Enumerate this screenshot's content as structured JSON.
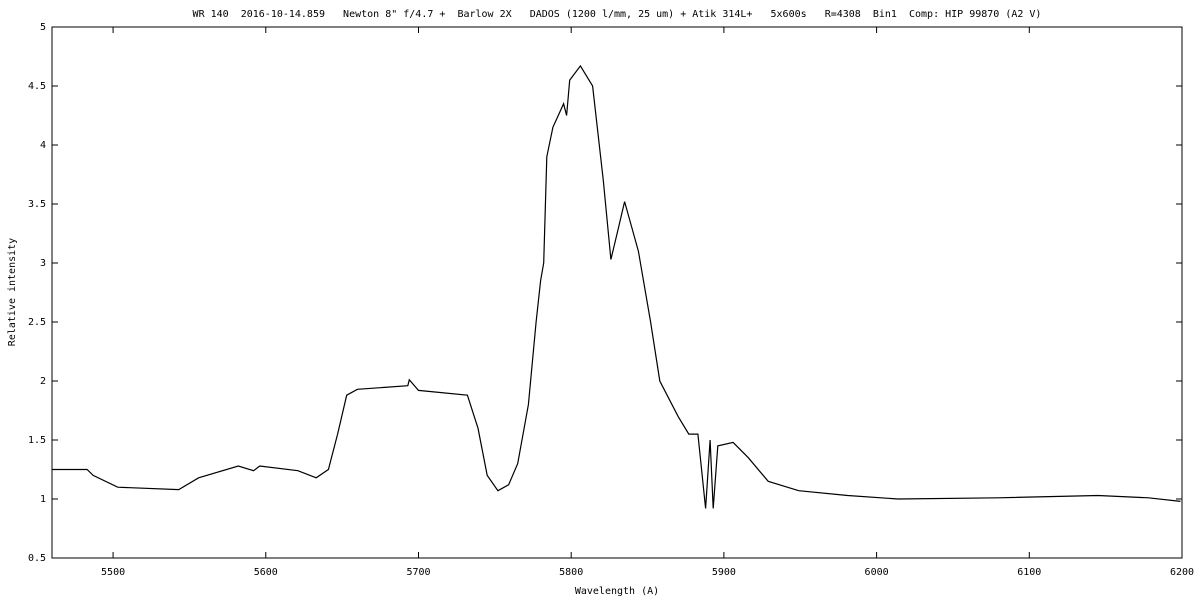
{
  "chart_data": {
    "type": "line",
    "title": "WR 140  2016-10-14.859   Newton 8\" f/4.7 +  Barlow 2X   DADOS (1200 l/mm, 25 um) + Atik 314L+   5x600s   R=4308  Bin1  Comp: HIP 99870 (A2 V)",
    "x_label": "Wavelength (A)",
    "y_label": "Relative intensity",
    "xlim": [
      5460,
      6200
    ],
    "ylim": [
      0.5,
      5
    ],
    "xticks": [
      5500,
      5600,
      5700,
      5800,
      5900,
      6000,
      6100,
      6200
    ],
    "yticks": [
      0.5,
      1,
      1.5,
      2,
      2.5,
      3,
      3.5,
      4,
      4.5,
      5
    ],
    "series": [
      {
        "color": "#000000",
        "x": [
          5460,
          5483,
          5487,
          5503,
          5543,
          5556,
          5582,
          5592,
          5596,
          5621,
          5633,
          5641,
          5647,
          5653,
          5660,
          5693,
          5694,
          5700,
          5732,
          5739,
          5745,
          5752,
          5759,
          5765,
          5772,
          5777,
          5780,
          5782,
          5784,
          5788,
          5795,
          5797,
          5799,
          5806,
          5814,
          5821,
          5826,
          5831,
          5835,
          5844,
          5852,
          5858,
          5870,
          5877,
          5883,
          5888,
          5891,
          5893,
          5896,
          5906,
          5916,
          5929,
          5949,
          5981,
          6014,
          6080,
          6145,
          6178,
          6199
        ],
        "values": [
          1.25,
          1.25,
          1.2,
          1.1,
          1.08,
          1.18,
          1.28,
          1.24,
          1.28,
          1.24,
          1.18,
          1.25,
          1.55,
          1.88,
          1.93,
          1.96,
          2.01,
          1.92,
          1.88,
          1.6,
          1.2,
          1.07,
          1.12,
          1.3,
          1.8,
          2.5,
          2.85,
          3.0,
          3.9,
          4.15,
          4.35,
          4.25,
          4.55,
          4.67,
          4.5,
          3.7,
          3.03,
          3.3,
          3.52,
          3.1,
          2.5,
          2.0,
          1.7,
          1.55,
          1.55,
          0.92,
          1.5,
          0.92,
          1.45,
          1.48,
          1.35,
          1.15,
          1.07,
          1.03,
          1.0,
          1.01,
          1.03,
          1.01,
          0.98
        ]
      }
    ]
  }
}
